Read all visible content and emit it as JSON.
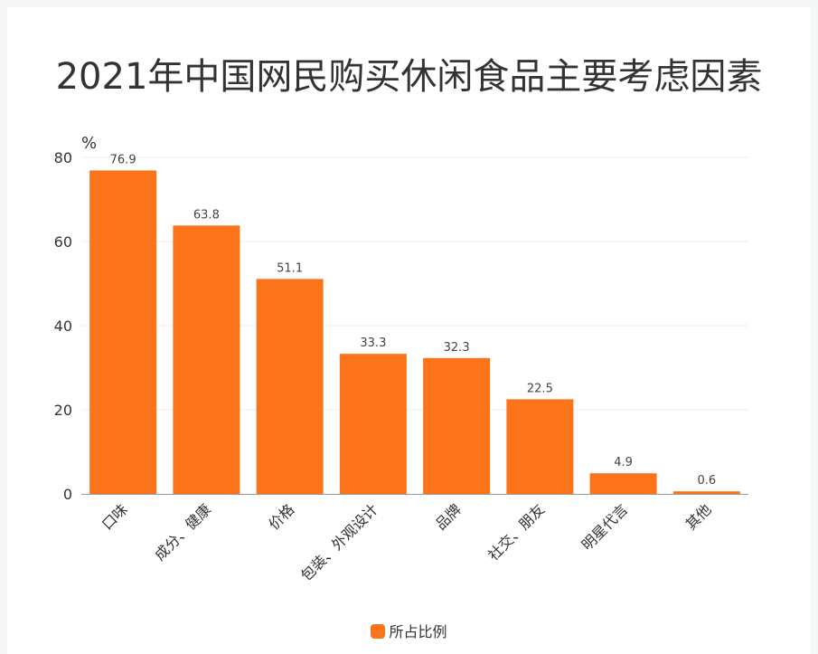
{
  "chart_data": {
    "type": "bar",
    "title": "2021年中国网民购买休闲食品主要考虑因素",
    "ylabel": "%",
    "xlabel": "",
    "ylim": [
      0,
      80
    ],
    "yticks": [
      0,
      20,
      40,
      60,
      80
    ],
    "categories": [
      "口味",
      "成分、健康",
      "价格",
      "包装、外观设计",
      "品牌",
      "社交、朋友",
      "明星代言",
      "其他"
    ],
    "series": [
      {
        "name": "所占比例",
        "values": [
          76.9,
          63.8,
          51.1,
          33.3,
          32.3,
          22.5,
          4.9,
          0.6
        ],
        "labels": [
          "76.9",
          "63.8",
          "51.1",
          "33.3",
          "32.3",
          "22.5",
          "4.9",
          "0.6"
        ]
      }
    ],
    "grid": true,
    "legend_position": "bottom"
  },
  "colors": {
    "bar": "#fb731a",
    "grid": "#eeeeee",
    "axis": "#999999"
  }
}
